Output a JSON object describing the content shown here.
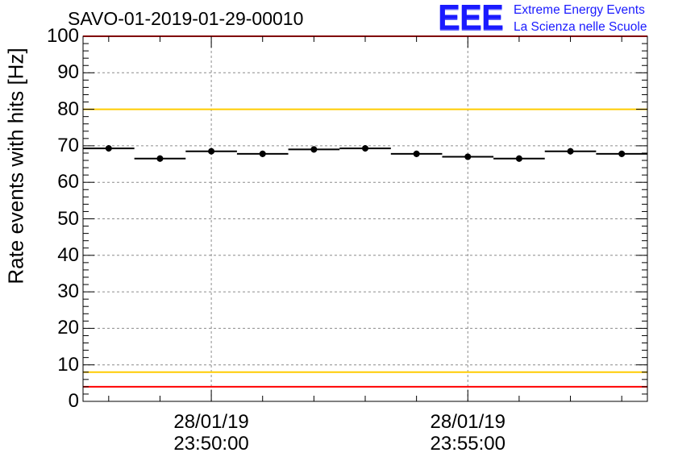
{
  "header": {
    "title": "SAVO-01-2019-01-29-00010",
    "logo_mark": "EEE",
    "logo_line1": "Extreme Energy Events",
    "logo_line2": "La Scienza nelle Scuole"
  },
  "colors": {
    "marker": "#000000",
    "red_threshold": "#ff0000",
    "yellow_threshold": "#ffcc00",
    "grid": "#8c8c8c",
    "logo": "#1a1aff"
  },
  "chart_data": {
    "type": "scatter",
    "title": "SAVO-01-2019-01-29-00010",
    "ylabel": "Rate events with hits [Hz]",
    "xlabel": "",
    "ylim": [
      0,
      100
    ],
    "yticks": [
      0,
      10,
      20,
      30,
      40,
      50,
      60,
      70,
      80,
      90,
      100
    ],
    "grid": true,
    "x_unit": "minutes after 28/01/19 23:47:30",
    "xlim": [
      0,
      11
    ],
    "xticks": [
      {
        "x": 2.5,
        "date": "28/01/19",
        "time": "23:50:00"
      },
      {
        "x": 7.5,
        "date": "28/01/19",
        "time": "23:55:00"
      }
    ],
    "thresholds": [
      {
        "value": 80,
        "color": "yellow"
      },
      {
        "value": 8,
        "color": "yellow"
      },
      {
        "value": 100,
        "color": "red"
      },
      {
        "value": 4,
        "color": "red"
      }
    ],
    "series": [
      {
        "name": "Rate events with hits",
        "x_bins": [
          [
            0,
            1
          ],
          [
            1,
            2
          ],
          [
            2,
            3
          ],
          [
            3,
            4
          ],
          [
            4,
            5
          ],
          [
            5,
            6
          ],
          [
            6,
            7
          ],
          [
            7,
            8
          ],
          [
            8,
            9
          ],
          [
            9,
            10
          ],
          [
            10,
            11
          ]
        ],
        "values": [
          69.3,
          66.5,
          68.5,
          67.8,
          69.0,
          69.3,
          67.8,
          67.0,
          66.5,
          68.5,
          67.8
        ]
      }
    ]
  }
}
